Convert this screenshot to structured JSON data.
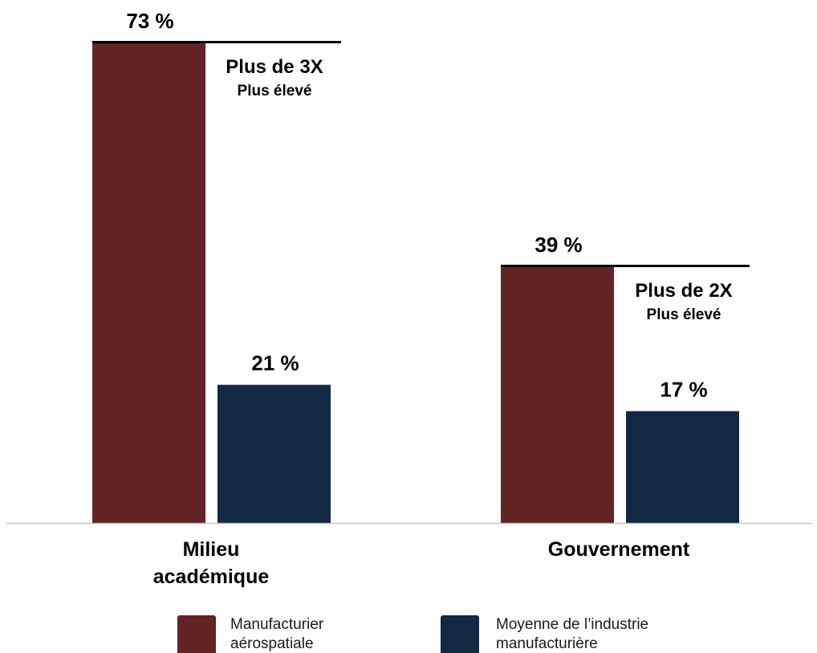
{
  "chart_data": {
    "type": "bar",
    "categories": [
      "Milieu académique",
      "Gouvernement"
    ],
    "category_lines": [
      [
        "Milieu",
        "académique"
      ],
      [
        "Gouvernement"
      ]
    ],
    "series": [
      {
        "name": "Manufacturier aérospatiale",
        "legend_lines": [
          "Manufacturier",
          "aérospatiale"
        ],
        "values": [
          73,
          39
        ],
        "color": "#632426"
      },
      {
        "name": "Moyenne de l’industrie manufacturière",
        "legend_lines": [
          "Moyenne de l’industrie",
          "manufacturière"
        ],
        "values": [
          21,
          17
        ],
        "color": "#132842"
      }
    ],
    "value_labels": [
      [
        "73 %",
        "39 %"
      ],
      [
        "21 %",
        "17 %"
      ]
    ],
    "annotations": [
      {
        "main": "Plus de 3X",
        "sub": "Plus élevé"
      },
      {
        "main": "Plus de 2X",
        "sub": "Plus élevé"
      }
    ],
    "ylim": [
      0,
      73
    ],
    "unit": "%",
    "title": "",
    "xlabel": "",
    "ylabel": "",
    "grid": false,
    "legend_position": "bottom"
  }
}
